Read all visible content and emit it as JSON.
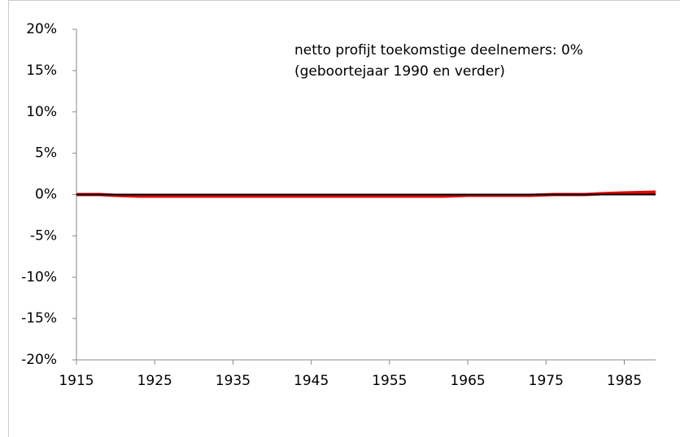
{
  "chart_data": {
    "type": "line",
    "annotations": [
      "netto profijt toekomstige deelnemers: 0%",
      "(geboortejaar 1990 en verder)"
    ],
    "x": [
      1915,
      1918,
      1920,
      1923,
      1925,
      1935,
      1945,
      1955,
      1962,
      1965,
      1970,
      1973,
      1976,
      1980,
      1982,
      1985,
      1989
    ],
    "series": [
      {
        "color": "#e00000",
        "values": [
          0,
          0,
          -0.1,
          -0.2,
          -0.2,
          -0.2,
          -0.2,
          -0.2,
          -0.2,
          -0.1,
          -0.1,
          -0.1,
          0,
          0,
          0.1,
          0.2,
          0.3
        ]
      },
      {
        "color": "#000000",
        "values": [
          0,
          0,
          0,
          0,
          0,
          0,
          0,
          0,
          0,
          0,
          0,
          0,
          0,
          0,
          0,
          0,
          0
        ]
      }
    ],
    "xlim": [
      1915,
      1989
    ],
    "xticks": [
      1915,
      1925,
      1935,
      1945,
      1955,
      1965,
      1975,
      1985
    ],
    "ylim": [
      -20,
      20
    ],
    "yticks": [
      {
        "value": -20,
        "label": "-20%"
      },
      {
        "value": -15,
        "label": "-15%"
      },
      {
        "value": -10,
        "label": "-10%"
      },
      {
        "value": -5,
        "label": "-5%"
      },
      {
        "value": 0,
        "label": "0%"
      },
      {
        "value": 5,
        "label": "5%"
      },
      {
        "value": 10,
        "label": "10%"
      },
      {
        "value": 15,
        "label": "15%"
      },
      {
        "value": 20,
        "label": "20%"
      }
    ]
  }
}
